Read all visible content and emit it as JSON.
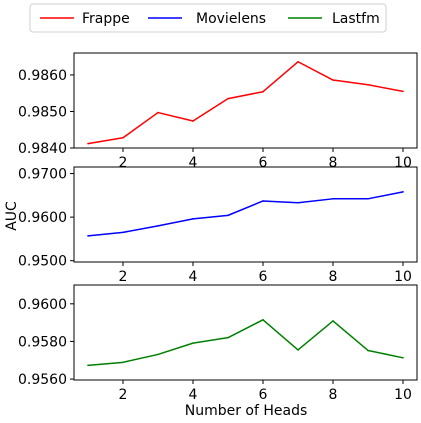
{
  "legend": {
    "items": [
      {
        "label": "Frappe",
        "color": "#ff0000"
      },
      {
        "label": "Movielens",
        "color": "#0000ff"
      },
      {
        "label": "Lastfm",
        "color": "#008000"
      }
    ]
  },
  "ylabel": "AUC",
  "xlabel": "Number of Heads",
  "chart_data": [
    {
      "type": "line",
      "x": [
        1,
        2,
        3,
        4,
        5,
        6,
        7,
        8,
        9,
        10
      ],
      "series": [
        {
          "name": "Frappe",
          "color": "#ff0000",
          "values": [
            0.98412,
            0.98428,
            0.98497,
            0.98474,
            0.98535,
            0.98554,
            0.98636,
            0.98586,
            0.98573,
            0.98555
          ]
        }
      ],
      "xlim": [
        0.6,
        10.4
      ],
      "ylim": [
        0.984,
        0.9866
      ],
      "xticks": [
        2,
        4,
        6,
        8,
        10
      ],
      "yticks": [
        0.984,
        0.985,
        0.986
      ],
      "ytick_labels": [
        "0.9840",
        "0.9850",
        "0.9860"
      ],
      "grid": false
    },
    {
      "type": "line",
      "x": [
        1,
        2,
        3,
        4,
        5,
        6,
        7,
        8,
        9,
        10
      ],
      "series": [
        {
          "name": "Movielens",
          "color": "#0000ff",
          "values": [
            0.9557,
            0.9565,
            0.958,
            0.9596,
            0.9604,
            0.9637,
            0.9633,
            0.9642,
            0.9642,
            0.9658
          ]
        }
      ],
      "xlim": [
        0.6,
        10.4
      ],
      "ylim": [
        0.9497,
        0.9715
      ],
      "xticks": [
        2,
        4,
        6,
        8,
        10
      ],
      "yticks": [
        0.95,
        0.96,
        0.97
      ],
      "ytick_labels": [
        "0.9500",
        "0.9600",
        "0.9700"
      ],
      "grid": false
    },
    {
      "type": "line",
      "x": [
        1,
        2,
        3,
        4,
        5,
        6,
        7,
        8,
        9,
        10
      ],
      "series": [
        {
          "name": "Lastfm",
          "color": "#008000",
          "values": [
            0.95673,
            0.95689,
            0.95731,
            0.95791,
            0.9582,
            0.95915,
            0.95755,
            0.95909,
            0.95752,
            0.95713
          ]
        }
      ],
      "xlim": [
        0.6,
        10.4
      ],
      "ylim": [
        0.95595,
        0.961
      ],
      "xticks": [
        2,
        4,
        6,
        8,
        10
      ],
      "yticks": [
        0.956,
        0.958,
        0.96
      ],
      "ytick_labels": [
        "0.9560",
        "0.9580",
        "0.9600"
      ],
      "grid": false
    }
  ]
}
